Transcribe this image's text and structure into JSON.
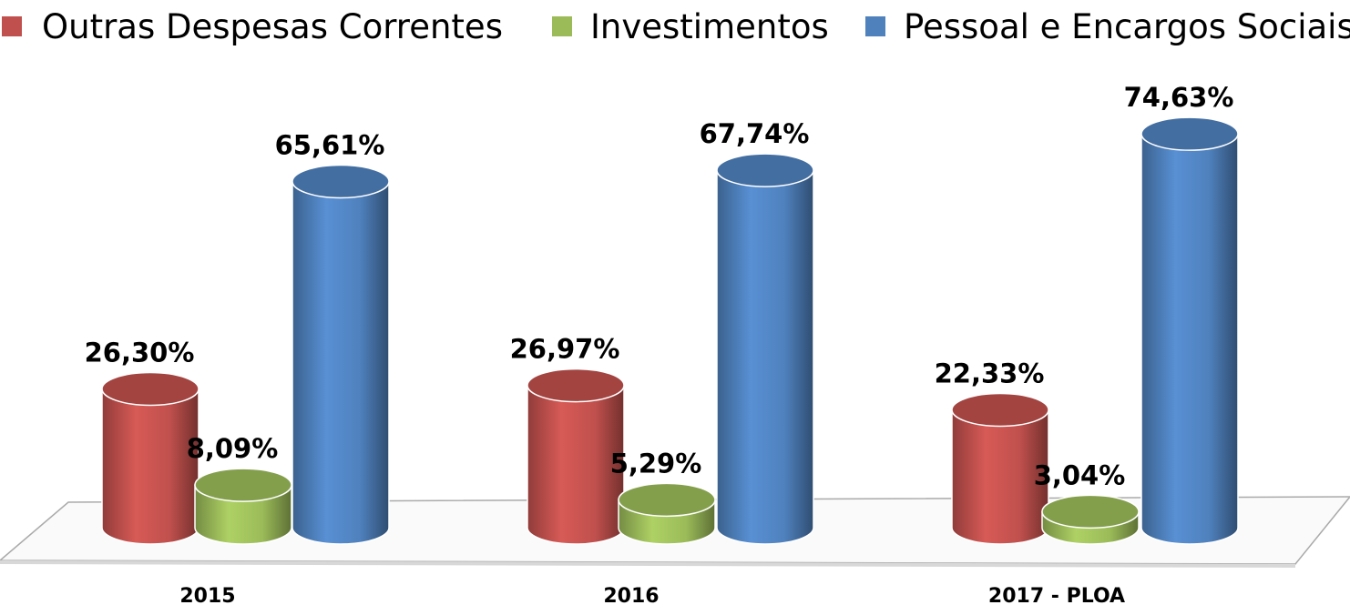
{
  "chart_data": {
    "type": "bar3d",
    "categories": [
      "2015",
      "2016",
      "2017 - PLOA"
    ],
    "series": [
      {
        "name": "Outras Despesas Correntes",
        "color": "#c0504d",
        "values": [
          26.3,
          26.97,
          22.33
        ],
        "value_labels": [
          "26,30%",
          "26,97%",
          "22,33%"
        ]
      },
      {
        "name": "Investimentos",
        "color": "#9bbb59",
        "values": [
          8.09,
          5.29,
          3.04
        ],
        "value_labels": [
          "8,09%",
          "5,29%",
          "3,04%"
        ]
      },
      {
        "name": "Pessoal e Encargos Sociais",
        "color": "#4f81bd",
        "values": [
          65.61,
          67.74,
          74.63
        ],
        "value_labels": [
          "65,61%",
          "67,74%",
          "74,63%"
        ]
      }
    ],
    "legend": "top"
  }
}
